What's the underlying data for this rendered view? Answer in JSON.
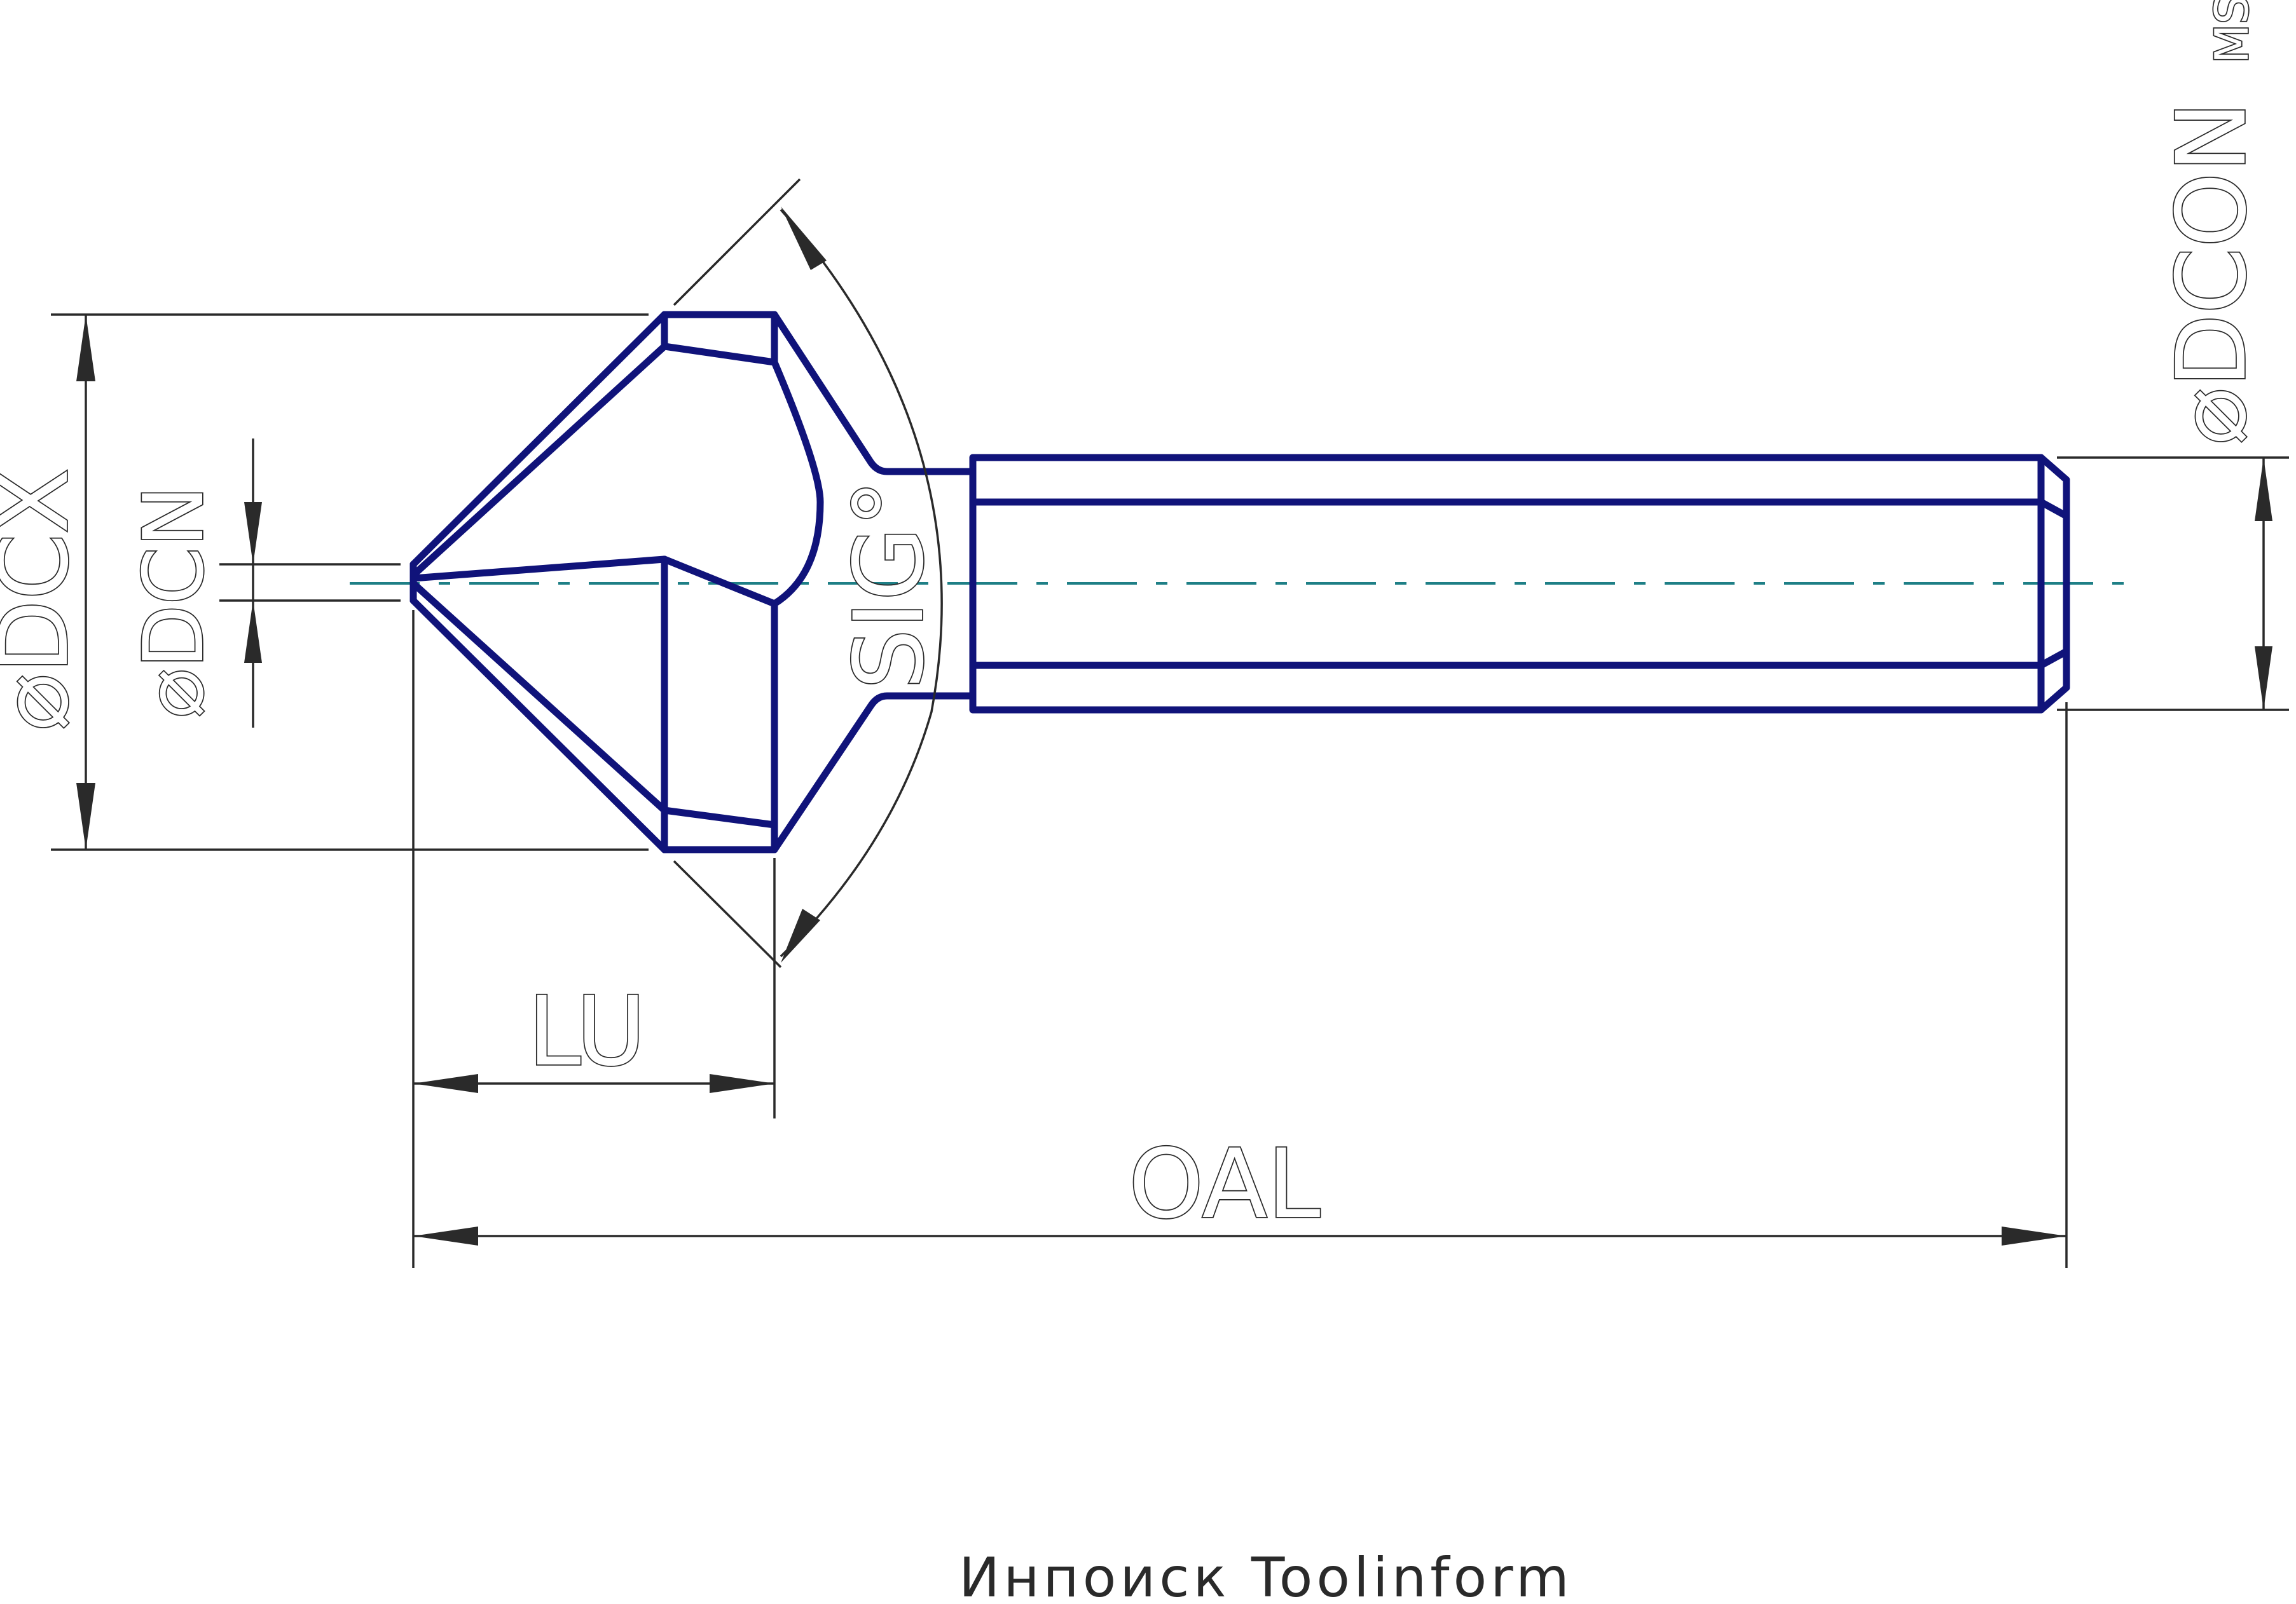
{
  "labels": {
    "dcx": "⌀DCX",
    "dcn": "⌀DCN",
    "sig": "SIG°",
    "lu": "LU",
    "oal": "OAL",
    "dcon": "⌀DCON",
    "dcon_sub": "MS"
  },
  "footer": "Инпоиск Toolinform",
  "colors": {
    "tool_outline": "#10137a",
    "dimension_lines": "#2a2a2a",
    "centerline": "#1e7f86"
  }
}
